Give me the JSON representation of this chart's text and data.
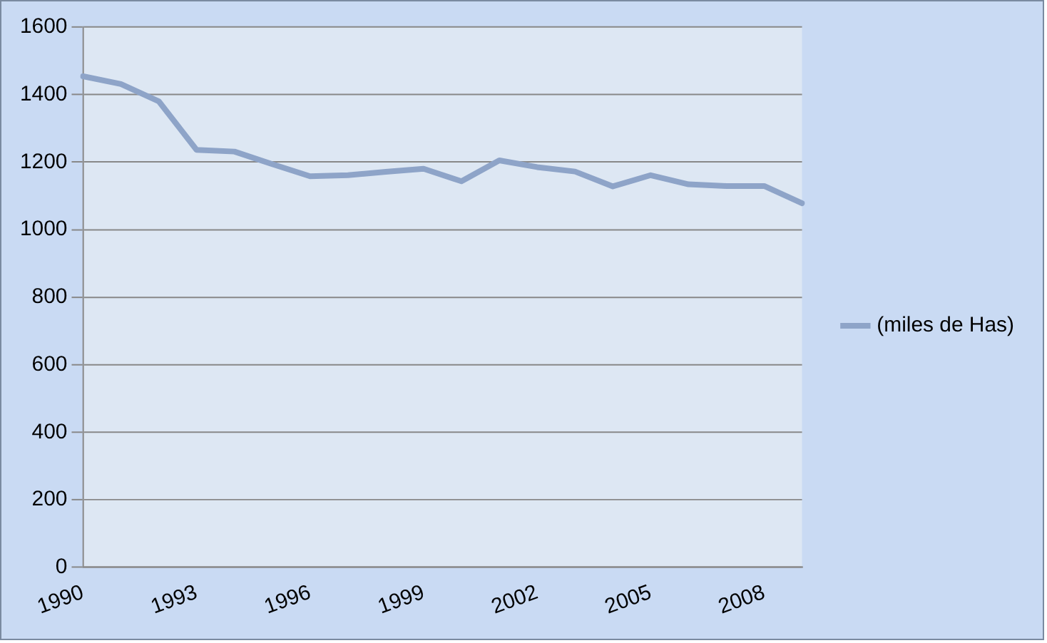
{
  "chart_data": {
    "type": "line",
    "categories": [
      "1990",
      null,
      null,
      "1993",
      null,
      null,
      "1996",
      null,
      null,
      "1999",
      null,
      null,
      "2002",
      null,
      null,
      "2005",
      null,
      null,
      "2008",
      null
    ],
    "series": [
      {
        "name": "(miles de Has)",
        "color": "#8ea4c8",
        "values": [
          1454,
          1431,
          1380,
          1236,
          1231,
          1194,
          1158,
          1161,
          1171,
          1180,
          1143,
          1205,
          1185,
          1172,
          1128,
          1161,
          1134,
          1129,
          1129,
          1078
        ]
      }
    ],
    "ylim": [
      0,
      1600
    ],
    "yticks": [
      0,
      200,
      400,
      600,
      800,
      1000,
      1200,
      1400,
      1600
    ],
    "grid": "y",
    "legend": "right",
    "marker": "none",
    "line_style": "solid"
  }
}
